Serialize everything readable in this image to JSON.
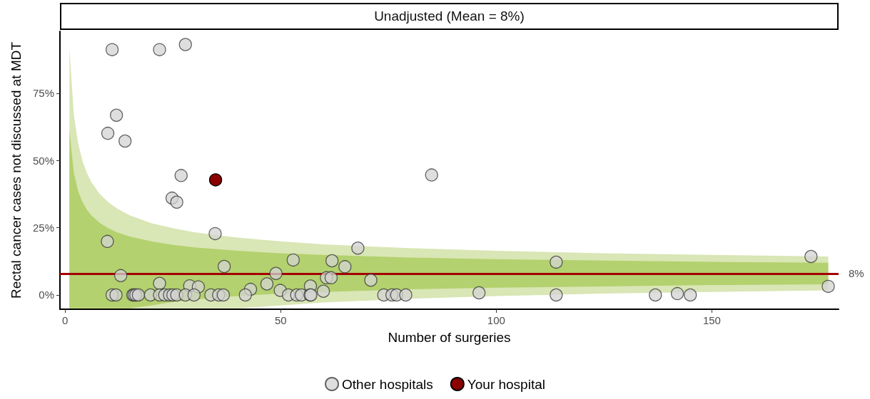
{
  "chart_data": {
    "type": "scatter",
    "title": "Unadjusted (Mean = 8%)",
    "xlabel": "Number of surgeries",
    "ylabel": "Rectal cancer cases not discussed at MDT",
    "xlim": [
      -1.2,
      179.4
    ],
    "ylim": [
      -5.3,
      98
    ],
    "xticks": [
      0,
      50,
      100,
      150
    ],
    "yticks": [
      {
        "value": 0,
        "label": "0%"
      },
      {
        "value": 25,
        "label": "25%"
      },
      {
        "value": 50,
        "label": "50%"
      },
      {
        "value": 75,
        "label": "75%"
      }
    ],
    "grid": false,
    "legend": "bottom",
    "marker": "circle",
    "ref_lines": [
      {
        "axis": "y",
        "value": 8,
        "label": "8%",
        "color": "#a50000"
      }
    ],
    "series": [
      {
        "type": "line",
        "color": "#d9e6b5",
        "x": [
          1,
          2,
          3,
          4,
          5,
          6,
          8,
          10,
          12,
          15,
          20,
          25,
          30,
          40,
          50,
          60,
          80,
          100,
          125,
          150,
          177
        ],
        "values": [
          null,
          null,
          null,
          null,
          null,
          null,
          null,
          null,
          null,
          null,
          null,
          null,
          null,
          null,
          null,
          null,
          null,
          null,
          null,
          null,
          null
        ],
        "upper": [
          91.8,
          67.3,
          56.4,
          49.9,
          45.5,
          42.2,
          37.6,
          34.5,
          32.2,
          29.6,
          26.7,
          24.8,
          23.3,
          21.3,
          19.9,
          18.8,
          17.4,
          16.4,
          15.5,
          14.9,
          14.3
        ],
        "lower": [
          -5,
          -5,
          -5,
          -5,
          -5,
          -5,
          -5,
          -5,
          -5,
          -5,
          -5,
          -5,
          -5,
          -5,
          -3.9,
          -2.8,
          -1.4,
          -0.4,
          0.5,
          1.1,
          1.7
        ]
      },
      {
        "type": "line",
        "color": "#b3d16e",
        "x": [
          1,
          2,
          3,
          4,
          5,
          6,
          8,
          10,
          12,
          15,
          20,
          25,
          30,
          40,
          50,
          60,
          80,
          100,
          125,
          150,
          177
        ],
        "values": [
          null,
          null,
          null,
          null,
          null,
          null,
          null,
          null,
          null,
          null,
          null,
          null,
          null,
          null,
          null,
          null,
          null,
          null,
          null,
          null,
          null
        ],
        "upper": [
          61.2,
          45.6,
          38.7,
          34.6,
          31.8,
          29.7,
          26.8,
          24.8,
          23.3,
          21.7,
          19.9,
          18.6,
          17.7,
          16.4,
          15.5,
          14.9,
          13.9,
          13.3,
          12.8,
          12.3,
          12.0
        ],
        "lower": [
          -5,
          -5,
          -5,
          -5,
          -5,
          -5,
          -5,
          -5,
          -5,
          -5,
          -3.9,
          -2.6,
          -1.7,
          -0.4,
          0.5,
          1.1,
          2.1,
          2.7,
          3.2,
          3.7,
          4.0
        ]
      },
      {
        "name": "Other hospitals",
        "color": "#d3d3d3",
        "x": [
          10.9,
          21.9,
          27.9,
          11.9,
          9.9,
          13.9,
          26.9,
          24.8,
          25.9,
          34.8,
          9.8,
          12.9,
          36.9,
          85,
          67.9,
          52.9,
          61.9,
          64.9,
          48.9,
          60.6,
          61.7,
          46.8,
          43,
          49.9,
          56.9,
          59.9,
          70.9,
          28.9,
          30.9,
          21.9,
          113.9,
          173,
          177,
          96,
          142,
          10.9,
          11.8,
          15.7,
          16,
          16.4,
          17,
          19.8,
          21.9,
          23.1,
          24.2,
          25,
          25.9,
          27.9,
          29.9,
          33.8,
          35.6,
          36.7,
          41.8,
          51.8,
          53.7,
          54.8,
          56.8,
          57,
          73.9,
          75.8,
          76.9,
          79,
          113.9,
          136.9,
          145
        ],
        "values": [
          91.2,
          91.2,
          93.1,
          66.8,
          60.1,
          57.2,
          44.4,
          36,
          34.5,
          22.8,
          19.9,
          7.2,
          10.6,
          44.6,
          17.4,
          13,
          12.7,
          10.5,
          8,
          6.4,
          6.4,
          4.1,
          2.1,
          1.7,
          3.3,
          1.4,
          5.5,
          3.4,
          3,
          4.3,
          12.2,
          14.3,
          3.2,
          0.8,
          0.5,
          0,
          0,
          0,
          0,
          0,
          0,
          0,
          0,
          0,
          0,
          0,
          0,
          0,
          0,
          0,
          0,
          0,
          0,
          0,
          0,
          0,
          0,
          0,
          0,
          0,
          0,
          0,
          0,
          0,
          0
        ]
      },
      {
        "name": "Your hospital",
        "color": "#8b0000",
        "x": [
          34.9
        ],
        "values": [
          42.8
        ]
      }
    ]
  }
}
